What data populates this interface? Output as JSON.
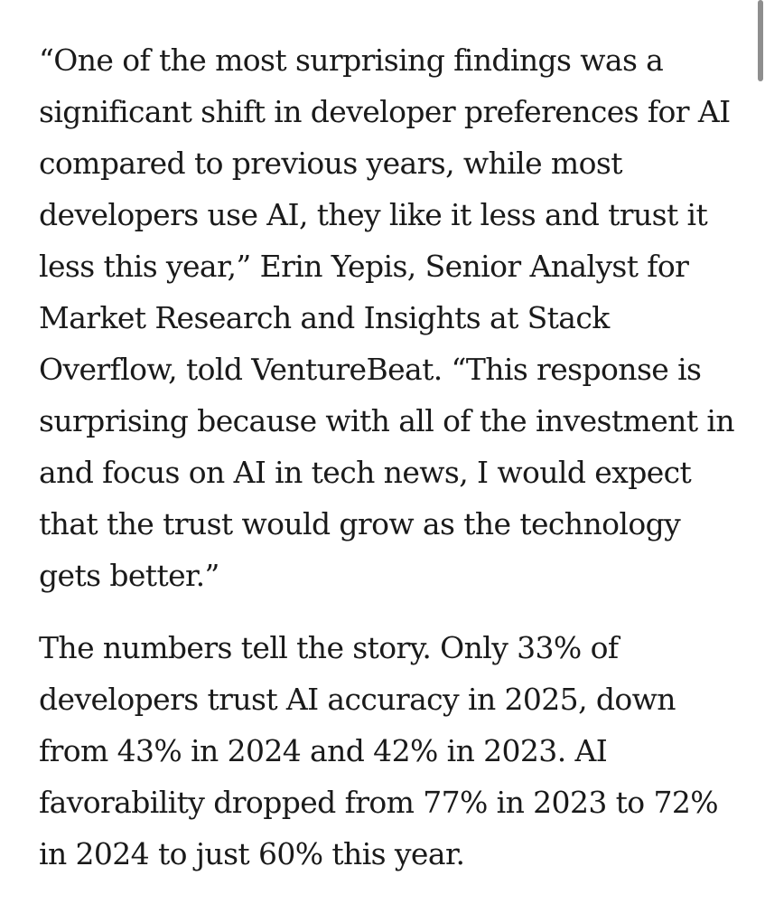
{
  "article": {
    "quote_paragraph": "“One of the most surprising findings was a significant shift in developer preferences for AI compared to previous years, while most developers use AI, they like it less and trust it less this year,” Erin Yepis, Senior Analyst for Market Research and Insights at Stack Overflow, told VentureBeat. “This response is surprising because with all of the investment in and focus on AI in tech news, I would expect that the trust would grow as the technology gets better.”",
    "numbers_paragraph": "The numbers tell the story. Only 33% of developers trust AI accuracy in 2025, down from 43% in 2024 and 42% in 2023. AI favorability dropped from 77% in 2023 to 72% in 2024 to just 60% this year."
  },
  "scrollbar": {
    "color": "#8e8e8e"
  }
}
